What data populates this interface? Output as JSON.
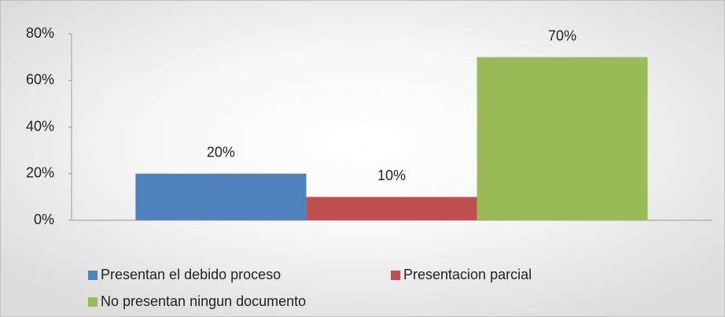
{
  "chart_data": {
    "type": "bar",
    "categories": [
      null
    ],
    "series": [
      {
        "name": "Presentan el debido proceso",
        "color": "#4f81bd",
        "values": [
          20
        ],
        "value_labels": [
          "20%"
        ]
      },
      {
        "name": "Presentacion parcial",
        "color": "#c0504d",
        "values": [
          10
        ],
        "value_labels": [
          "10%"
        ]
      },
      {
        "name": "No presentan ningun documento",
        "color": "#9bbb59",
        "values": [
          70
        ],
        "value_labels": [
          "70%"
        ]
      }
    ],
    "ylim": [
      0,
      80
    ],
    "yticks": [
      {
        "value": 0,
        "label": "0%"
      },
      {
        "value": 20,
        "label": "20%"
      },
      {
        "value": 40,
        "label": "40%"
      },
      {
        "value": 60,
        "label": "60%"
      },
      {
        "value": 80,
        "label": "80%"
      }
    ],
    "grid": false,
    "legend": "bottom"
  }
}
